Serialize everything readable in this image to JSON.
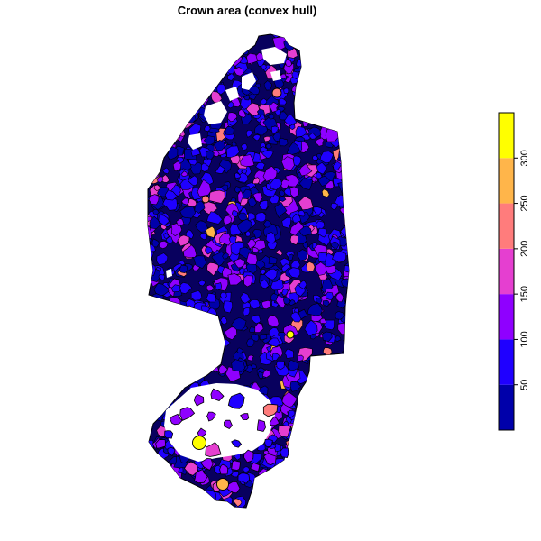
{
  "map": {
    "title": "Crown area (convex hull)",
    "colour_scale": {
      "breaks": [
        0,
        50,
        100,
        150,
        200,
        250,
        300,
        350
      ],
      "tick_labels": [
        "50",
        "100",
        "150",
        "200",
        "250",
        "300"
      ],
      "tick_values": [
        50,
        100,
        150,
        200,
        250,
        300
      ],
      "colors": [
        "#0000AA",
        "#1F00FF",
        "#8F00FF",
        "#E53FD0",
        "#FF7C7C",
        "#FFB54A",
        "#FFFF00"
      ]
    },
    "polygon_outline_color": "#000000"
  }
}
